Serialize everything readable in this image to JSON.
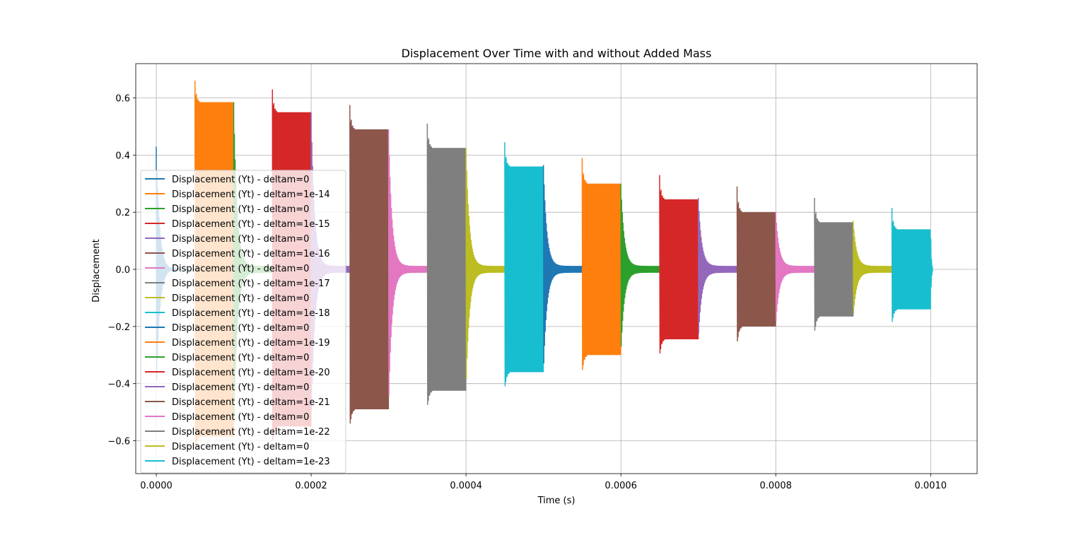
{
  "chart_data": {
    "type": "line",
    "title": "Displacement Over Time with and without Added Mass",
    "xlabel": "Time (s)",
    "ylabel": "Displacement",
    "xlim": [
      -2.65e-05,
      0.00106
    ],
    "ylim": [
      -0.715,
      0.72
    ],
    "xticks": [
      0.0,
      0.0002,
      0.0004,
      0.0006,
      0.0008,
      0.001
    ],
    "xtick_labels": [
      "0.0000",
      "0.0002",
      "0.0004",
      "0.0006",
      "0.0008",
      "0.0010"
    ],
    "yticks": [
      -0.6,
      -0.4,
      -0.2,
      0.0,
      0.2,
      0.4,
      0.6
    ],
    "ytick_labels": [
      "−0.6",
      "−0.4",
      "−0.2",
      "0.0",
      "0.2",
      "0.4",
      "0.6"
    ],
    "grid": true,
    "legend_position": "lower-left",
    "series": [
      {
        "name": "Displacement (Yt) - deltam=0",
        "color": "#1f77b4",
        "kind": "decay",
        "t_start": 0.0,
        "t_end": 5e-05,
        "peak": 0.43,
        "ss": 0.0
      },
      {
        "name": "Displacement (Yt) - deltam=1e-14",
        "color": "#ff7f0e",
        "kind": "block",
        "t_start": 5e-05,
        "t_end": 0.0001,
        "peak": 0.66,
        "ss": 0.585
      },
      {
        "name": "Displacement (Yt) - deltam=0",
        "color": "#2ca02c",
        "kind": "decay",
        "t_start": 0.0001,
        "t_end": 0.00015,
        "peak": 0.585,
        "ss": 0.012
      },
      {
        "name": "Displacement (Yt) - deltam=1e-15",
        "color": "#d62728",
        "kind": "block",
        "t_start": 0.00015,
        "t_end": 0.0002,
        "peak": 0.63,
        "ss": 0.55
      },
      {
        "name": "Displacement (Yt) - deltam=0",
        "color": "#9467bd",
        "kind": "decay",
        "t_start": 0.0002,
        "t_end": 0.00025,
        "peak": 0.55,
        "ss": 0.012
      },
      {
        "name": "Displacement (Yt) - deltam=1e-16",
        "color": "#8c564b",
        "kind": "block",
        "t_start": 0.00025,
        "t_end": 0.0003,
        "peak": 0.575,
        "ss": 0.49
      },
      {
        "name": "Displacement (Yt) - deltam=0",
        "color": "#e377c2",
        "kind": "decay",
        "t_start": 0.0003,
        "t_end": 0.00035,
        "peak": 0.49,
        "ss": 0.012
      },
      {
        "name": "Displacement (Yt) - deltam=1e-17",
        "color": "#7f7f7f",
        "kind": "block",
        "t_start": 0.00035,
        "t_end": 0.0004,
        "peak": 0.51,
        "ss": 0.425
      },
      {
        "name": "Displacement (Yt) - deltam=0",
        "color": "#bcbd22",
        "kind": "decay",
        "t_start": 0.0004,
        "t_end": 0.00045,
        "peak": 0.425,
        "ss": 0.012
      },
      {
        "name": "Displacement (Yt) - deltam=1e-18",
        "color": "#17becf",
        "kind": "block",
        "t_start": 0.00045,
        "t_end": 0.0005,
        "peak": 0.445,
        "ss": 0.36
      },
      {
        "name": "Displacement (Yt) - deltam=0",
        "color": "#1f77b4",
        "kind": "decay",
        "t_start": 0.0005,
        "t_end": 0.00055,
        "peak": 0.365,
        "ss": 0.012
      },
      {
        "name": "Displacement (Yt) - deltam=1e-19",
        "color": "#ff7f0e",
        "kind": "block",
        "t_start": 0.00055,
        "t_end": 0.0006,
        "peak": 0.39,
        "ss": 0.3
      },
      {
        "name": "Displacement (Yt) - deltam=0",
        "color": "#2ca02c",
        "kind": "decay",
        "t_start": 0.0006,
        "t_end": 0.00065,
        "peak": 0.3,
        "ss": 0.012
      },
      {
        "name": "Displacement (Yt) - deltam=1e-20",
        "color": "#d62728",
        "kind": "block",
        "t_start": 0.00065,
        "t_end": 0.0007,
        "peak": 0.33,
        "ss": 0.245
      },
      {
        "name": "Displacement (Yt) - deltam=0",
        "color": "#9467bd",
        "kind": "decay",
        "t_start": 0.0007,
        "t_end": 0.00075,
        "peak": 0.25,
        "ss": 0.012
      },
      {
        "name": "Displacement (Yt) - deltam=1e-21",
        "color": "#8c564b",
        "kind": "block",
        "t_start": 0.00075,
        "t_end": 0.0008,
        "peak": 0.29,
        "ss": 0.2
      },
      {
        "name": "Displacement (Yt) - deltam=0",
        "color": "#e377c2",
        "kind": "decay",
        "t_start": 0.0008,
        "t_end": 0.00085,
        "peak": 0.2,
        "ss": 0.012
      },
      {
        "name": "Displacement (Yt) - deltam=1e-22",
        "color": "#7f7f7f",
        "kind": "block",
        "t_start": 0.00085,
        "t_end": 0.0009,
        "peak": 0.25,
        "ss": 0.165
      },
      {
        "name": "Displacement (Yt) - deltam=0",
        "color": "#bcbd22",
        "kind": "decay",
        "t_start": 0.0009,
        "t_end": 0.00095,
        "peak": 0.17,
        "ss": 0.012
      },
      {
        "name": "Displacement (Yt) - deltam=1e-23",
        "color": "#17becf",
        "kind": "block",
        "t_start": 0.00095,
        "t_end": 0.001,
        "peak": 0.215,
        "ss": 0.14
      }
    ]
  }
}
